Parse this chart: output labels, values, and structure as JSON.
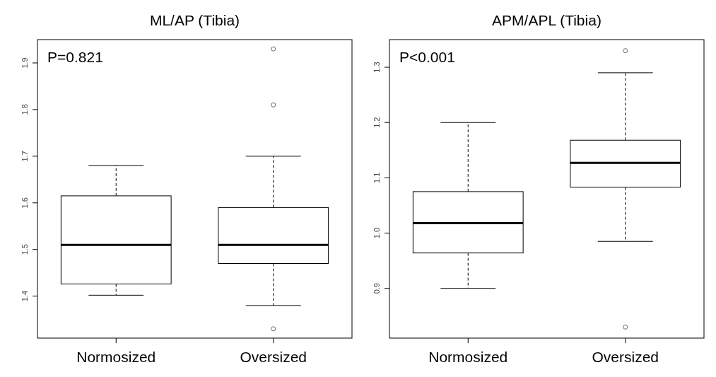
{
  "chart_data": [
    {
      "type": "box",
      "title": "ML/AP (Tibia)",
      "categories": [
        "Normosized",
        "Oversized"
      ],
      "ylim": [
        1.31,
        1.95
      ],
      "yticks": [
        1.4,
        1.5,
        1.6,
        1.7,
        1.8,
        1.9
      ],
      "annotations": [
        "P=0.821"
      ],
      "boxes": [
        {
          "low": 1.402,
          "q1": 1.426,
          "median": 1.51,
          "q3": 1.615,
          "high": 1.68
        },
        {
          "low": 1.38,
          "q1": 1.47,
          "median": 1.51,
          "q3": 1.59,
          "high": 1.7,
          "outliers": [
            1.93,
            1.81,
            1.33
          ]
        }
      ]
    },
    {
      "type": "box",
      "title": "APM/APL (Tibia)",
      "categories": [
        "Normosized",
        "Oversized"
      ],
      "ylim": [
        0.81,
        1.35
      ],
      "yticks": [
        0.9,
        {
          "value": 1,
          "label": "1.0"
        },
        1.1,
        1.2,
        1.3
      ],
      "annotations": [
        "P<0.001"
      ],
      "boxes": [
        {
          "low": 0.9,
          "q1": 0.964,
          "median": 1.018,
          "q3": 1.075,
          "high": 1.2
        },
        {
          "low": 0.985,
          "q1": 1.083,
          "median": 1.127,
          "q3": 1.168,
          "high": 1.29,
          "outliers": [
            1.33,
            0.83
          ]
        }
      ]
    }
  ]
}
